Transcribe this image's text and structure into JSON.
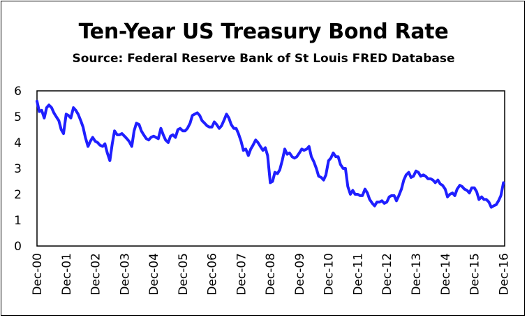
{
  "chart_data": {
    "type": "line",
    "title": "Ten-Year US Treasury Bond Rate",
    "subtitle": "Source: Federal Reserve Bank of St Louis FRED Database",
    "xlabel": "",
    "ylabel": "",
    "xlim": [
      2000.92,
      2016.96
    ],
    "ylim": [
      0,
      6
    ],
    "y_ticks": [
      0,
      1,
      2,
      3,
      4,
      5,
      6
    ],
    "x_ticks": [
      {
        "label": "Dec-00",
        "x": 2000.92
      },
      {
        "label": "Dec-01",
        "x": 2001.92
      },
      {
        "label": "Dec-02",
        "x": 2002.92
      },
      {
        "label": "Dec-03",
        "x": 2003.92
      },
      {
        "label": "Dec-04",
        "x": 2004.92
      },
      {
        "label": "Dec-05",
        "x": 2005.92
      },
      {
        "label": "Dec-06",
        "x": 2006.92
      },
      {
        "label": "Dec-07",
        "x": 2007.92
      },
      {
        "label": "Dec-08",
        "x": 2008.92
      },
      {
        "label": "Dec-09",
        "x": 2009.92
      },
      {
        "label": "Dec-10",
        "x": 2010.92
      },
      {
        "label": "Dec-11",
        "x": 2011.92
      },
      {
        "label": "Dec-12",
        "x": 2012.92
      },
      {
        "label": "Dec-13",
        "x": 2013.92
      },
      {
        "label": "Dec-14",
        "x": 2014.92
      },
      {
        "label": "Dec-15",
        "x": 2015.92
      },
      {
        "label": "Dec-16",
        "x": 2016.92
      }
    ],
    "grid": false,
    "series": [
      {
        "color": "#1f1fff",
        "points": [
          [
            2000.92,
            5.6
          ],
          [
            2001.0,
            5.2
          ],
          [
            2001.08,
            5.25
          ],
          [
            2001.17,
            4.95
          ],
          [
            2001.25,
            5.35
          ],
          [
            2001.33,
            5.45
          ],
          [
            2001.42,
            5.35
          ],
          [
            2001.5,
            5.15
          ],
          [
            2001.58,
            5.0
          ],
          [
            2001.67,
            4.85
          ],
          [
            2001.75,
            4.5
          ],
          [
            2001.83,
            4.35
          ],
          [
            2001.92,
            5.1
          ],
          [
            2002.0,
            5.05
          ],
          [
            2002.08,
            4.95
          ],
          [
            2002.17,
            5.35
          ],
          [
            2002.25,
            5.25
          ],
          [
            2002.33,
            5.1
          ],
          [
            2002.42,
            4.85
          ],
          [
            2002.5,
            4.6
          ],
          [
            2002.58,
            4.2
          ],
          [
            2002.67,
            3.85
          ],
          [
            2002.75,
            4.05
          ],
          [
            2002.83,
            4.2
          ],
          [
            2002.92,
            4.05
          ],
          [
            2003.0,
            4.0
          ],
          [
            2003.08,
            3.9
          ],
          [
            2003.17,
            3.85
          ],
          [
            2003.25,
            3.95
          ],
          [
            2003.33,
            3.6
          ],
          [
            2003.42,
            3.3
          ],
          [
            2003.5,
            3.95
          ],
          [
            2003.58,
            4.45
          ],
          [
            2003.67,
            4.3
          ],
          [
            2003.75,
            4.3
          ],
          [
            2003.83,
            4.35
          ],
          [
            2003.92,
            4.25
          ],
          [
            2004.0,
            4.15
          ],
          [
            2004.08,
            4.05
          ],
          [
            2004.17,
            3.85
          ],
          [
            2004.25,
            4.45
          ],
          [
            2004.33,
            4.75
          ],
          [
            2004.42,
            4.7
          ],
          [
            2004.5,
            4.45
          ],
          [
            2004.58,
            4.3
          ],
          [
            2004.67,
            4.15
          ],
          [
            2004.75,
            4.1
          ],
          [
            2004.83,
            4.2
          ],
          [
            2004.92,
            4.25
          ],
          [
            2005.0,
            4.2
          ],
          [
            2005.08,
            4.15
          ],
          [
            2005.17,
            4.55
          ],
          [
            2005.25,
            4.3
          ],
          [
            2005.33,
            4.1
          ],
          [
            2005.42,
            4.0
          ],
          [
            2005.5,
            4.25
          ],
          [
            2005.58,
            4.3
          ],
          [
            2005.67,
            4.2
          ],
          [
            2005.75,
            4.5
          ],
          [
            2005.83,
            4.55
          ],
          [
            2005.92,
            4.45
          ],
          [
            2006.0,
            4.45
          ],
          [
            2006.08,
            4.55
          ],
          [
            2006.17,
            4.75
          ],
          [
            2006.25,
            5.05
          ],
          [
            2006.33,
            5.1
          ],
          [
            2006.42,
            5.15
          ],
          [
            2006.5,
            5.05
          ],
          [
            2006.58,
            4.85
          ],
          [
            2006.67,
            4.75
          ],
          [
            2006.75,
            4.65
          ],
          [
            2006.83,
            4.6
          ],
          [
            2006.92,
            4.6
          ],
          [
            2007.0,
            4.8
          ],
          [
            2007.08,
            4.7
          ],
          [
            2007.17,
            4.55
          ],
          [
            2007.25,
            4.65
          ],
          [
            2007.33,
            4.85
          ],
          [
            2007.42,
            5.1
          ],
          [
            2007.5,
            4.95
          ],
          [
            2007.58,
            4.7
          ],
          [
            2007.67,
            4.55
          ],
          [
            2007.75,
            4.55
          ],
          [
            2007.83,
            4.35
          ],
          [
            2007.92,
            4.05
          ],
          [
            2008.0,
            3.7
          ],
          [
            2008.08,
            3.75
          ],
          [
            2008.17,
            3.5
          ],
          [
            2008.25,
            3.75
          ],
          [
            2008.33,
            3.9
          ],
          [
            2008.42,
            4.1
          ],
          [
            2008.5,
            4.0
          ],
          [
            2008.58,
            3.85
          ],
          [
            2008.67,
            3.7
          ],
          [
            2008.75,
            3.8
          ],
          [
            2008.83,
            3.5
          ],
          [
            2008.92,
            2.45
          ],
          [
            2009.0,
            2.5
          ],
          [
            2009.08,
            2.85
          ],
          [
            2009.17,
            2.8
          ],
          [
            2009.25,
            2.95
          ],
          [
            2009.33,
            3.3
          ],
          [
            2009.42,
            3.75
          ],
          [
            2009.5,
            3.55
          ],
          [
            2009.58,
            3.6
          ],
          [
            2009.67,
            3.45
          ],
          [
            2009.75,
            3.4
          ],
          [
            2009.83,
            3.45
          ],
          [
            2009.92,
            3.6
          ],
          [
            2010.0,
            3.75
          ],
          [
            2010.08,
            3.7
          ],
          [
            2010.17,
            3.75
          ],
          [
            2010.25,
            3.85
          ],
          [
            2010.33,
            3.45
          ],
          [
            2010.42,
            3.25
          ],
          [
            2010.5,
            3.0
          ],
          [
            2010.58,
            2.7
          ],
          [
            2010.67,
            2.65
          ],
          [
            2010.75,
            2.55
          ],
          [
            2010.83,
            2.75
          ],
          [
            2010.92,
            3.3
          ],
          [
            2011.0,
            3.4
          ],
          [
            2011.08,
            3.6
          ],
          [
            2011.17,
            3.45
          ],
          [
            2011.25,
            3.45
          ],
          [
            2011.33,
            3.15
          ],
          [
            2011.42,
            3.0
          ],
          [
            2011.5,
            3.0
          ],
          [
            2011.58,
            2.3
          ],
          [
            2011.67,
            2.0
          ],
          [
            2011.75,
            2.15
          ],
          [
            2011.83,
            2.0
          ],
          [
            2011.92,
            2.0
          ],
          [
            2012.0,
            1.95
          ],
          [
            2012.08,
            1.95
          ],
          [
            2012.17,
            2.2
          ],
          [
            2012.25,
            2.05
          ],
          [
            2012.33,
            1.8
          ],
          [
            2012.42,
            1.65
          ],
          [
            2012.5,
            1.55
          ],
          [
            2012.58,
            1.7
          ],
          [
            2012.67,
            1.7
          ],
          [
            2012.75,
            1.75
          ],
          [
            2012.83,
            1.65
          ],
          [
            2012.92,
            1.7
          ],
          [
            2013.0,
            1.9
          ],
          [
            2013.08,
            1.95
          ],
          [
            2013.17,
            1.95
          ],
          [
            2013.25,
            1.75
          ],
          [
            2013.33,
            1.95
          ],
          [
            2013.42,
            2.2
          ],
          [
            2013.5,
            2.55
          ],
          [
            2013.58,
            2.75
          ],
          [
            2013.67,
            2.85
          ],
          [
            2013.75,
            2.65
          ],
          [
            2013.83,
            2.7
          ],
          [
            2013.92,
            2.9
          ],
          [
            2014.0,
            2.85
          ],
          [
            2014.08,
            2.7
          ],
          [
            2014.17,
            2.75
          ],
          [
            2014.25,
            2.7
          ],
          [
            2014.33,
            2.6
          ],
          [
            2014.42,
            2.6
          ],
          [
            2014.5,
            2.55
          ],
          [
            2014.58,
            2.45
          ],
          [
            2014.67,
            2.55
          ],
          [
            2014.75,
            2.4
          ],
          [
            2014.83,
            2.35
          ],
          [
            2014.92,
            2.2
          ],
          [
            2015.0,
            1.9
          ],
          [
            2015.08,
            2.0
          ],
          [
            2015.17,
            2.05
          ],
          [
            2015.25,
            1.95
          ],
          [
            2015.33,
            2.2
          ],
          [
            2015.42,
            2.35
          ],
          [
            2015.5,
            2.3
          ],
          [
            2015.58,
            2.2
          ],
          [
            2015.67,
            2.15
          ],
          [
            2015.75,
            2.05
          ],
          [
            2015.83,
            2.25
          ],
          [
            2015.92,
            2.25
          ],
          [
            2016.0,
            2.1
          ],
          [
            2016.08,
            1.8
          ],
          [
            2016.17,
            1.9
          ],
          [
            2016.25,
            1.8
          ],
          [
            2016.33,
            1.8
          ],
          [
            2016.42,
            1.7
          ],
          [
            2016.5,
            1.5
          ],
          [
            2016.58,
            1.55
          ],
          [
            2016.67,
            1.6
          ],
          [
            2016.75,
            1.75
          ],
          [
            2016.83,
            1.95
          ],
          [
            2016.92,
            2.45
          ]
        ]
      }
    ]
  }
}
